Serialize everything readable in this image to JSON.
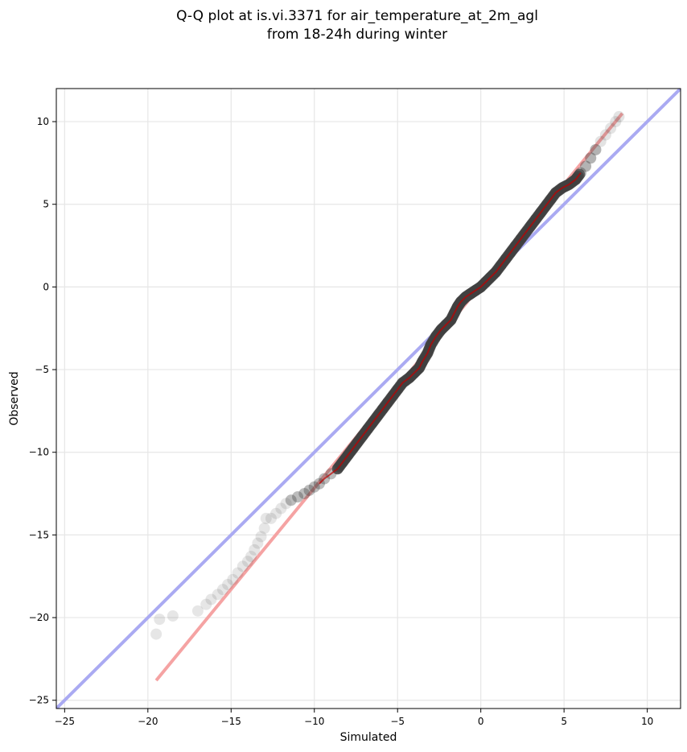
{
  "chart_data": {
    "type": "scatter",
    "title_lines": [
      "Q-Q plot at is.vi.3371 for air_temperature_at_2m_agl",
      "from 18-24h during winter"
    ],
    "xlabel": "Simulated",
    "ylabel": "Observed",
    "xlim": [
      -25.5,
      12
    ],
    "ylim": [
      -25.5,
      12
    ],
    "xticks": [
      -25,
      -20,
      -15,
      -10,
      -5,
      0,
      5,
      10
    ],
    "yticks": [
      -25,
      -20,
      -15,
      -10,
      -5,
      0,
      5,
      10
    ],
    "xtick_labels": [
      "−25",
      "−20",
      "−15",
      "−10",
      "−5",
      "0",
      "5",
      "10"
    ],
    "ytick_labels": [
      "−25",
      "−20",
      "−15",
      "−10",
      "−5",
      "0",
      "5",
      "10"
    ],
    "grid": true,
    "colors": {
      "points": "#404040",
      "identity_line": "#aaaaf2",
      "fit_line": "#f5a3a3",
      "fit_line_core": "#c00000",
      "identity_core": "#1a1aa0"
    },
    "series": [
      {
        "kind": "quantiles",
        "points": [
          [
            -19.5,
            -21.0
          ],
          [
            -19.3,
            -20.1
          ],
          [
            -18.5,
            -19.9
          ],
          [
            -17.0,
            -19.6
          ],
          [
            -16.5,
            -19.2
          ],
          [
            -16.2,
            -18.9
          ],
          [
            -15.8,
            -18.6
          ],
          [
            -15.5,
            -18.3
          ],
          [
            -15.2,
            -18.0
          ],
          [
            -14.9,
            -17.7
          ],
          [
            -14.6,
            -17.3
          ],
          [
            -14.3,
            -16.9
          ],
          [
            -14.0,
            -16.6
          ],
          [
            -13.8,
            -16.3
          ],
          [
            -13.6,
            -15.9
          ],
          [
            -13.4,
            -15.5
          ],
          [
            -13.2,
            -15.1
          ],
          [
            -13.0,
            -14.6
          ],
          [
            -12.9,
            -14.0
          ],
          [
            -12.6,
            -14.0
          ],
          [
            -12.3,
            -13.7
          ],
          [
            -12.0,
            -13.4
          ],
          [
            -11.7,
            -13.1
          ],
          [
            -11.4,
            -12.9
          ],
          [
            -11.0,
            -12.7
          ],
          [
            -10.6,
            -12.5
          ],
          [
            -10.3,
            -12.3
          ],
          [
            -10.0,
            -12.1
          ],
          [
            -9.7,
            -11.9
          ],
          [
            -9.4,
            -11.6
          ],
          [
            -9.0,
            -11.3
          ],
          [
            -8.6,
            -11.0
          ],
          [
            -8.3,
            -10.6
          ],
          [
            -8.0,
            -10.2
          ],
          [
            -7.7,
            -9.8
          ],
          [
            -7.4,
            -9.4
          ],
          [
            -7.1,
            -9.0
          ],
          [
            -6.8,
            -8.6
          ],
          [
            -6.5,
            -8.2
          ],
          [
            -6.2,
            -7.8
          ],
          [
            -5.9,
            -7.4
          ],
          [
            -5.6,
            -7.0
          ],
          [
            -5.3,
            -6.6
          ],
          [
            -5.0,
            -6.2
          ],
          [
            -4.7,
            -5.8
          ],
          [
            -4.3,
            -5.5
          ],
          [
            -4.0,
            -5.2
          ],
          [
            -3.7,
            -4.9
          ],
          [
            -3.5,
            -4.5
          ],
          [
            -3.2,
            -4.0
          ],
          [
            -3.0,
            -3.5
          ],
          [
            -2.7,
            -3.0
          ],
          [
            -2.4,
            -2.6
          ],
          [
            -2.1,
            -2.3
          ],
          [
            -1.8,
            -2.0
          ],
          [
            -1.6,
            -1.6
          ],
          [
            -1.4,
            -1.2
          ],
          [
            -1.2,
            -0.9
          ],
          [
            -0.9,
            -0.6
          ],
          [
            -0.6,
            -0.4
          ],
          [
            -0.3,
            -0.2
          ],
          [
            0.0,
            0.0
          ],
          [
            0.3,
            0.3
          ],
          [
            0.6,
            0.6
          ],
          [
            0.9,
            0.9
          ],
          [
            1.2,
            1.3
          ],
          [
            1.5,
            1.7
          ],
          [
            1.8,
            2.1
          ],
          [
            2.1,
            2.5
          ],
          [
            2.4,
            2.9
          ],
          [
            2.7,
            3.3
          ],
          [
            3.0,
            3.7
          ],
          [
            3.3,
            4.1
          ],
          [
            3.6,
            4.5
          ],
          [
            3.9,
            4.9
          ],
          [
            4.2,
            5.3
          ],
          [
            4.5,
            5.7
          ],
          [
            4.9,
            6.0
          ],
          [
            5.3,
            6.2
          ],
          [
            5.7,
            6.5
          ],
          [
            6.0,
            6.9
          ],
          [
            6.3,
            7.3
          ],
          [
            6.6,
            7.8
          ],
          [
            6.9,
            8.3
          ],
          [
            7.2,
            8.8
          ],
          [
            7.5,
            9.2
          ],
          [
            7.8,
            9.6
          ],
          [
            8.1,
            10.0
          ],
          [
            8.3,
            10.3
          ]
        ]
      },
      {
        "kind": "identity_line",
        "from": [
          -25.5,
          -25.5
        ],
        "to": [
          12,
          12
        ]
      },
      {
        "kind": "fit_line",
        "from": [
          -19.5,
          -23.8
        ],
        "to": [
          8.5,
          10.5
        ]
      }
    ]
  }
}
